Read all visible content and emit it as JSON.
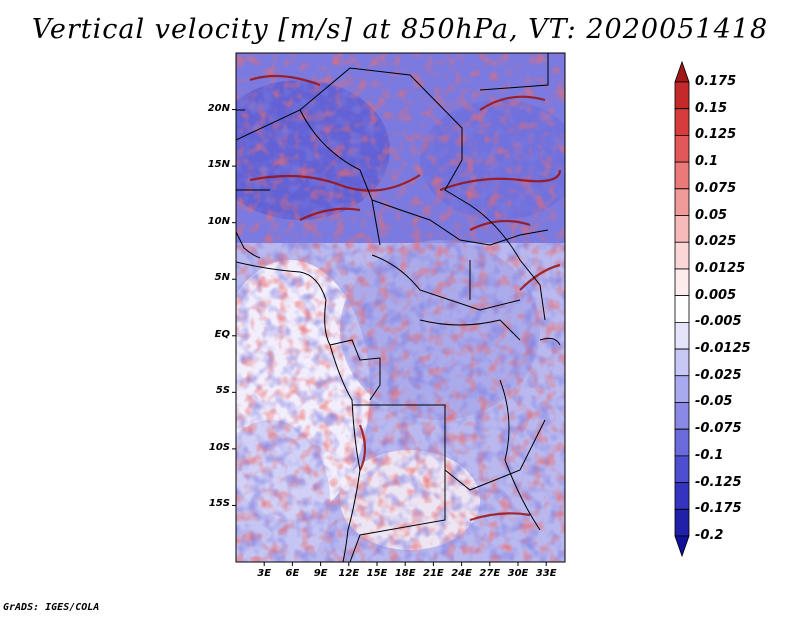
{
  "title": "Vertical velocity [m/s] at 850hPa, VT: 2020051418",
  "footer": "GrADS: IGES/COLA",
  "map": {
    "lon_range": [
      0,
      35
    ],
    "lat_range": [
      -20,
      25
    ],
    "lat_labels": [
      {
        "lat": 20,
        "label": "20N"
      },
      {
        "lat": 15,
        "label": "15N"
      },
      {
        "lat": 10,
        "label": "10N"
      },
      {
        "lat": 5,
        "label": "5N"
      },
      {
        "lat": 0,
        "label": "EQ"
      },
      {
        "lat": -5,
        "label": "5S"
      },
      {
        "lat": -10,
        "label": "10S"
      },
      {
        "lat": -15,
        "label": "15S"
      }
    ],
    "lon_labels": [
      {
        "lon": 3,
        "label": "3E"
      },
      {
        "lon": 6,
        "label": "6E"
      },
      {
        "lon": 9,
        "label": "9E"
      },
      {
        "lon": 12,
        "label": "12E"
      },
      {
        "lon": 15,
        "label": "15E"
      },
      {
        "lon": 18,
        "label": "18E"
      },
      {
        "lon": 21,
        "label": "21E"
      },
      {
        "lon": 24,
        "label": "24E"
      },
      {
        "lon": 27,
        "label": "27E"
      },
      {
        "lon": 30,
        "label": "30E"
      },
      {
        "lon": 33,
        "label": "33E"
      }
    ]
  },
  "colorbar": {
    "labels": [
      "0.175",
      "0.15",
      "0.125",
      "0.1",
      "0.075",
      "0.05",
      "0.025",
      "0.0125",
      "0.005",
      "-0.005",
      "-0.0125",
      "-0.025",
      "-0.05",
      "-0.075",
      "-0.1",
      "-0.125",
      "-0.175",
      "-0.2"
    ],
    "colors": [
      "#a01818",
      "#c42a2a",
      "#d63c3c",
      "#e25858",
      "#ea7a7a",
      "#f09a9a",
      "#f6baba",
      "#fad6d6",
      "#fdecec",
      "#ffffff",
      "#e4e4fb",
      "#c8c8f6",
      "#a9a9ef",
      "#8a8ae6",
      "#6b6bdc",
      "#4e4ed0",
      "#3434c0",
      "#2020a8",
      "#10109a"
    ]
  }
}
